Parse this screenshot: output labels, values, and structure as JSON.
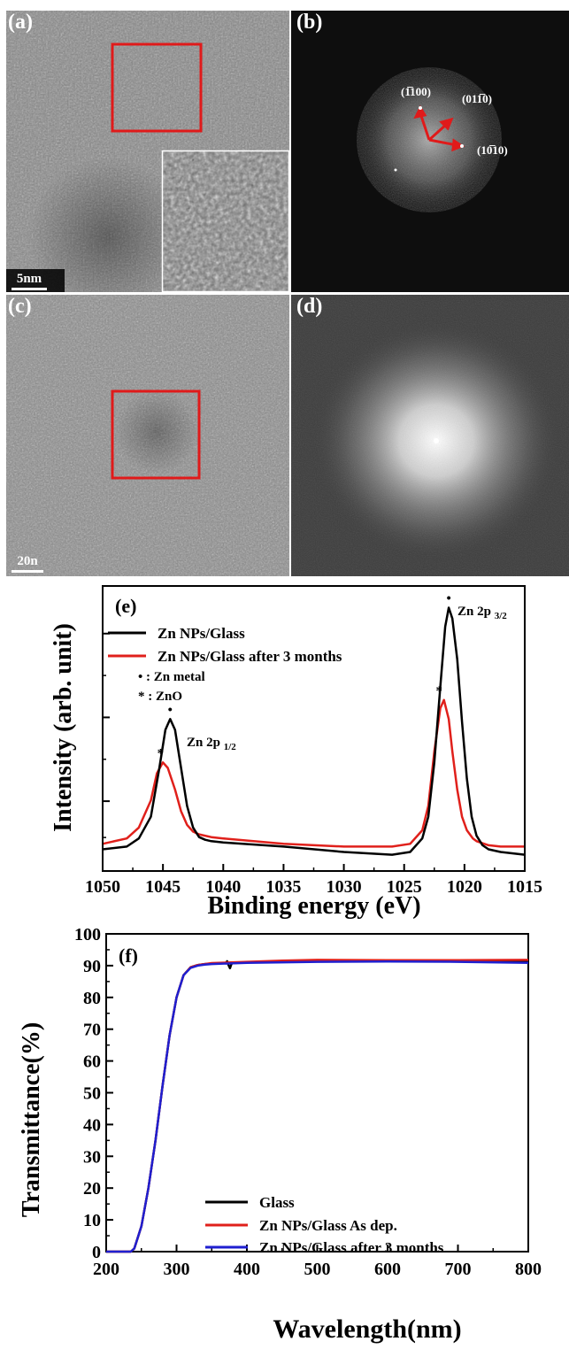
{
  "panels": {
    "a": {
      "label": "(a)",
      "scalebar": "5nm"
    },
    "b": {
      "label": "(b)",
      "indices": [
        "(1̅100)",
        "(011̅0)",
        "(10̅10)"
      ]
    },
    "c": {
      "label": "(c)",
      "scalebar": "20n"
    },
    "d": {
      "label": "(d)"
    }
  },
  "chart_data": [
    {
      "type": "line",
      "panel_label": "(e)",
      "xlabel": "Binding energy (eV)",
      "ylabel": "Intensity (arb. unit)",
      "xlim": [
        1050,
        1015
      ],
      "x_reversed": true,
      "xticks": [
        1050,
        1045,
        1040,
        1035,
        1030,
        1025,
        1020,
        1015
      ],
      "y_ticklabels": false,
      "series": [
        {
          "name": "Zn NPs/Glass",
          "color": "#000000",
          "x": [
            1050,
            1048,
            1047,
            1046,
            1045.3,
            1044.8,
            1044.4,
            1044,
            1043.5,
            1043,
            1042.5,
            1042,
            1041.5,
            1041,
            1040,
            1035,
            1030,
            1026,
            1024.5,
            1023.5,
            1023,
            1022.5,
            1022,
            1021.6,
            1021.3,
            1021,
            1020.6,
            1020.2,
            1019.8,
            1019.4,
            1019,
            1018.5,
            1018,
            1017,
            1015
          ],
          "y": [
            0.08,
            0.09,
            0.12,
            0.2,
            0.38,
            0.52,
            0.56,
            0.52,
            0.38,
            0.24,
            0.16,
            0.125,
            0.115,
            0.11,
            0.105,
            0.09,
            0.07,
            0.06,
            0.07,
            0.12,
            0.2,
            0.4,
            0.68,
            0.9,
            0.97,
            0.93,
            0.78,
            0.55,
            0.34,
            0.2,
            0.13,
            0.095,
            0.08,
            0.07,
            0.06
          ]
        },
        {
          "name": "Zn NPs/Glass after 3 months",
          "color": "#e0201b",
          "x": [
            1050,
            1048,
            1047,
            1046,
            1045.5,
            1045,
            1044.6,
            1044,
            1043.5,
            1043,
            1042.5,
            1042,
            1041,
            1040,
            1035,
            1030,
            1026,
            1024.5,
            1023.5,
            1023,
            1022.5,
            1022,
            1021.7,
            1021.3,
            1021,
            1020.6,
            1020.2,
            1019.8,
            1019.3,
            1019,
            1018,
            1017,
            1015
          ],
          "y": [
            0.1,
            0.12,
            0.16,
            0.26,
            0.36,
            0.4,
            0.38,
            0.3,
            0.22,
            0.17,
            0.145,
            0.135,
            0.125,
            0.12,
            0.1,
            0.09,
            0.09,
            0.1,
            0.15,
            0.24,
            0.44,
            0.6,
            0.63,
            0.56,
            0.44,
            0.3,
            0.2,
            0.15,
            0.12,
            0.11,
            0.095,
            0.09,
            0.09
          ]
        }
      ],
      "legend": [
        "Zn NPs/Glass",
        "Zn NPs/Glass after 3 months"
      ],
      "legend_position": "top-left",
      "notes": [
        "• : Zn metal",
        "* : ZnO"
      ],
      "peak_labels": [
        {
          "text": "Zn 2p",
          "sub": "1/2",
          "x": 1044.5
        },
        {
          "text": "Zn 2p",
          "sub": "3/2",
          "x": 1021.3
        }
      ],
      "markers": [
        {
          "symbol": "•",
          "x": 1044.4,
          "y": 0.56
        },
        {
          "symbol": "*",
          "x": 1045.2,
          "y": 0.4
        },
        {
          "symbol": "•",
          "x": 1021.3,
          "y": 0.97
        },
        {
          "symbol": "*",
          "x": 1022.1,
          "y": 0.63
        }
      ]
    },
    {
      "type": "line",
      "panel_label": "(f)",
      "xlabel": "Wavelength(nm)",
      "ylabel": "Transmittance(%)",
      "xlim": [
        200,
        800
      ],
      "ylim": [
        0,
        100
      ],
      "xticks": [
        200,
        300,
        400,
        500,
        600,
        700,
        800
      ],
      "yticks": [
        0,
        10,
        20,
        30,
        40,
        50,
        60,
        70,
        80,
        90,
        100
      ],
      "series": [
        {
          "name": "Glass",
          "color": "#000000",
          "x": [
            200,
            235,
            240,
            250,
            260,
            270,
            280,
            290,
            300,
            310,
            320,
            330,
            340,
            350,
            370,
            372,
            374,
            376,
            378,
            380,
            400,
            500,
            600,
            700,
            800
          ],
          "y": [
            0,
            0,
            1,
            8,
            20,
            35,
            52,
            68,
            80,
            87,
            89.5,
            90.2,
            90.5,
            90.6,
            90.8,
            91.4,
            90.1,
            89.2,
            90.5,
            90.8,
            91,
            91.4,
            91.5,
            91.5,
            91.3
          ]
        },
        {
          "name": "Zn NPs/Glass As dep.",
          "color": "#e0201b",
          "x": [
            200,
            235,
            240,
            250,
            260,
            270,
            280,
            290,
            300,
            310,
            320,
            330,
            340,
            350,
            400,
            450,
            500,
            600,
            700,
            800
          ],
          "y": [
            0,
            0,
            1,
            8,
            20,
            35,
            52,
            68,
            80,
            87,
            89.5,
            90.2,
            90.5,
            90.8,
            91.2,
            91.6,
            91.8,
            91.7,
            91.7,
            91.8
          ]
        },
        {
          "name": "Zn NPs/Glass after 3 months",
          "color": "#1f1fd0",
          "x": [
            200,
            235,
            240,
            250,
            260,
            270,
            280,
            290,
            300,
            310,
            320,
            330,
            340,
            350,
            400,
            500,
            600,
            700,
            800
          ],
          "y": [
            0,
            0,
            1,
            8,
            20,
            35,
            52,
            68,
            80,
            87,
            89.3,
            90,
            90.3,
            90.5,
            90.9,
            91.2,
            91.3,
            91.2,
            90.9
          ]
        }
      ],
      "legend": [
        "Glass",
        "Zn NPs/Glass As dep.",
        "Zn NPs/Glass after 3 months"
      ],
      "legend_position": "bottom-right"
    }
  ]
}
